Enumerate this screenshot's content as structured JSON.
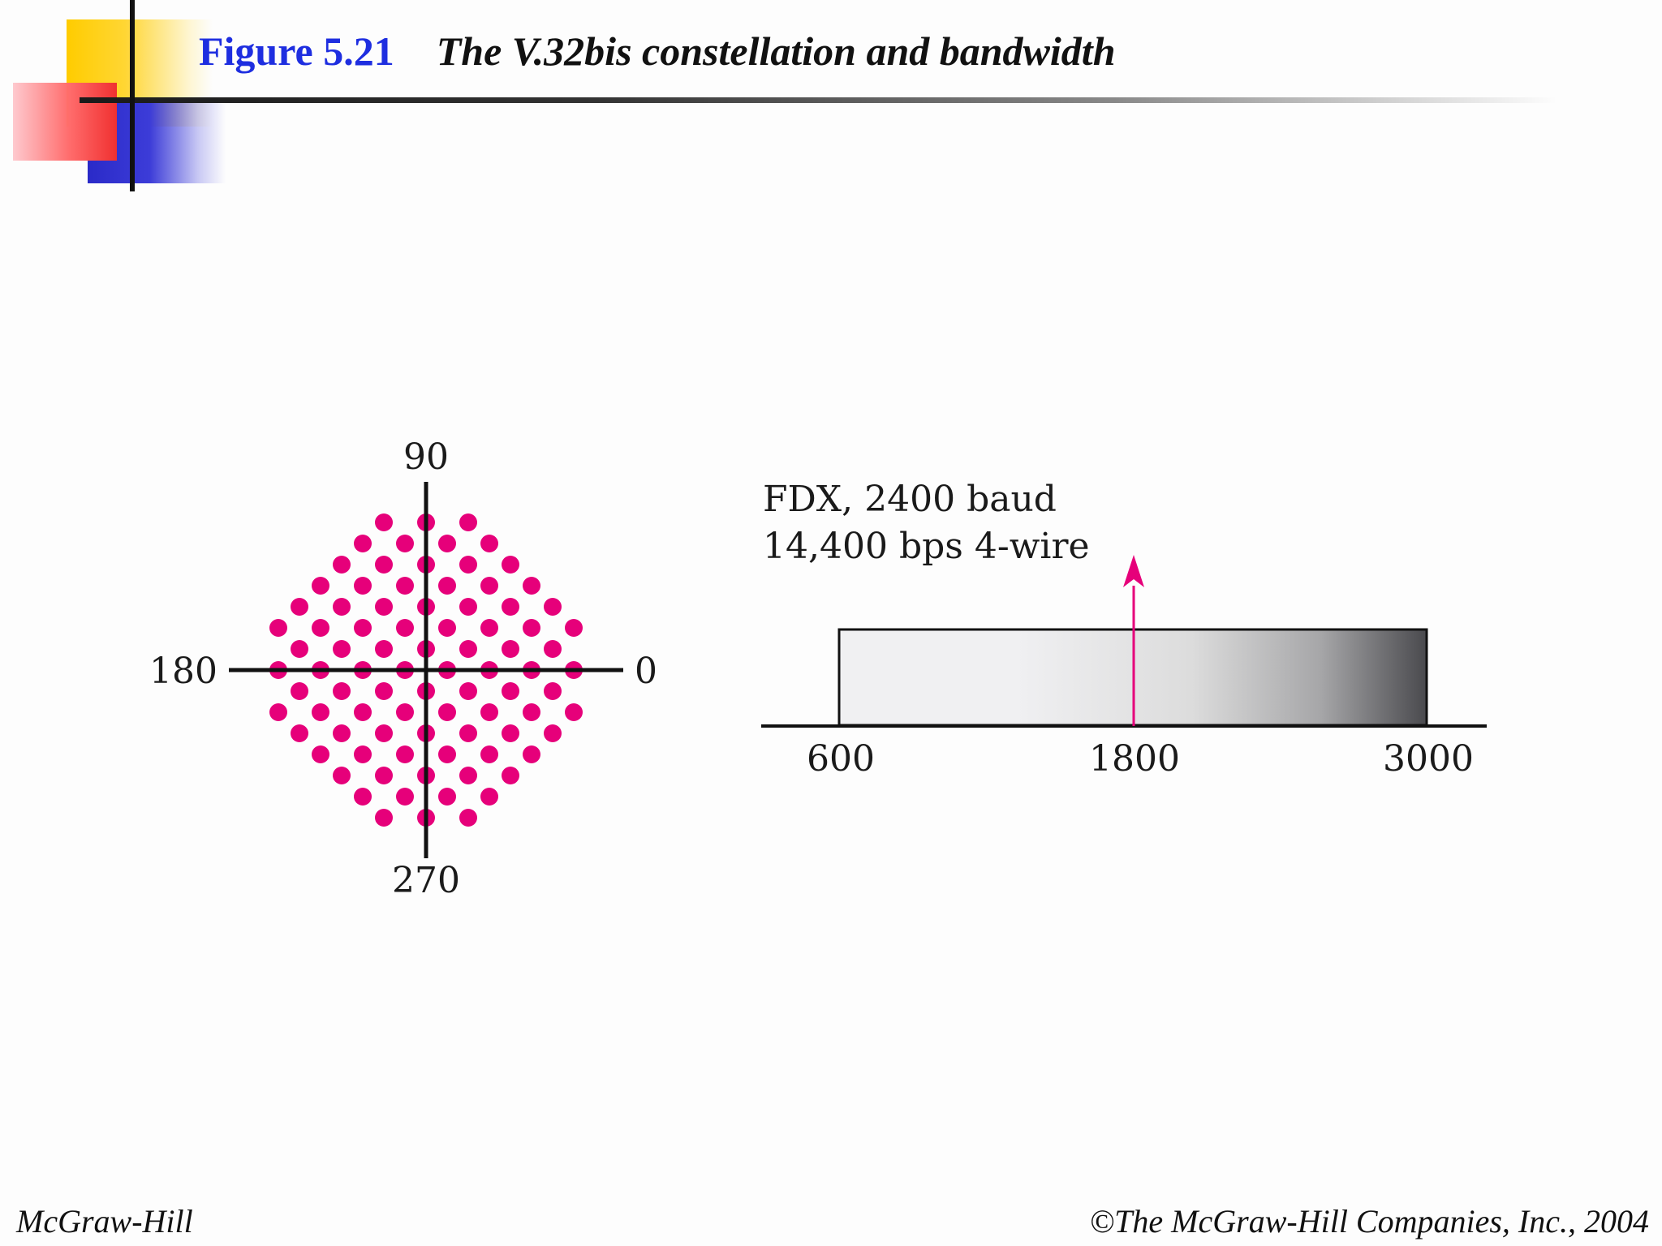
{
  "header": {
    "figure_number": "Figure 5.21",
    "caption": "The V.32bis constellation and bandwidth"
  },
  "constellation": {
    "label_top": "90",
    "label_bottom": "270",
    "label_left": "180",
    "label_right": "0",
    "point_color": "#e6007a",
    "point_count": 128
  },
  "bandwidth": {
    "line1": "FDX, 2400 baud",
    "line2": "14,400 bps 4-wire",
    "ticks": [
      "600",
      "1800",
      "3000"
    ],
    "carrier_color": "#e6007a"
  },
  "footer": {
    "left": "McGraw-Hill",
    "right": "©The McGraw-Hill Companies, Inc., 2004"
  }
}
